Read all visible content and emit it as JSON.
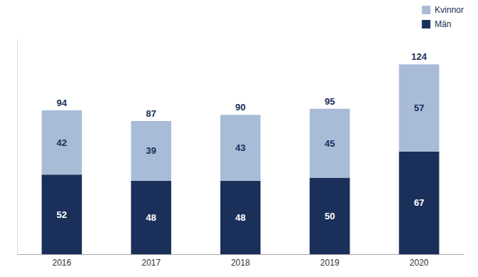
{
  "chart_data": {
    "type": "bar",
    "stacked": true,
    "data_labels": true,
    "tick_labels": "x",
    "legend": "upper right",
    "categories": [
      "2016",
      "2017",
      "2018",
      "2019",
      "2020"
    ],
    "series": [
      {
        "name": "Män",
        "color": "#1a2f5a",
        "values": [
          52,
          48,
          48,
          50,
          67
        ]
      },
      {
        "name": "Kvinnor",
        "color": "#a8bcd8",
        "values": [
          42,
          39,
          43,
          45,
          57
        ]
      }
    ],
    "totals": [
      94,
      87,
      90,
      95,
      124
    ],
    "ylim": [
      0,
      140
    ]
  }
}
